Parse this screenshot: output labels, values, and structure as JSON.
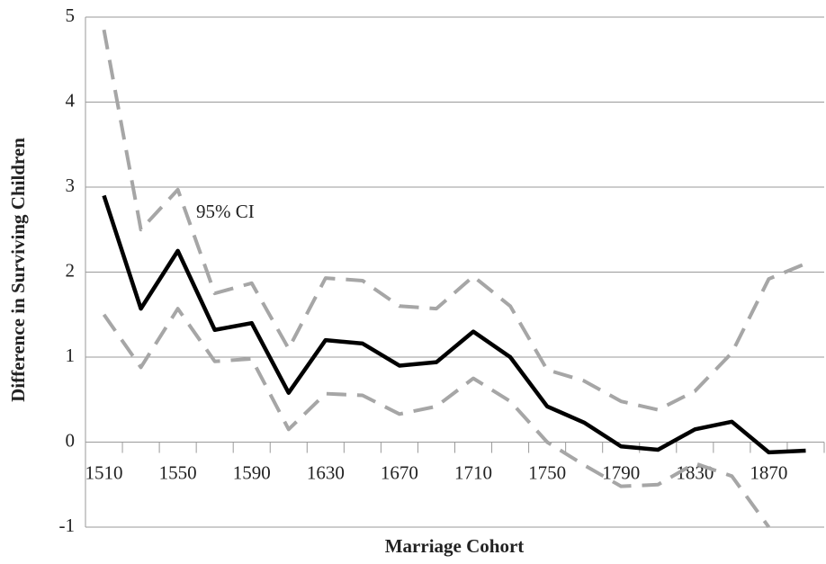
{
  "chart_data": {
    "type": "line",
    "xlabel": "Marriage Cohort",
    "ylabel": "Difference in Surviving Children",
    "annotation": "95% CI",
    "categories": [
      "1510",
      null,
      "1550",
      null,
      "1590",
      null,
      "1630",
      null,
      "1670",
      null,
      "1710",
      null,
      "1750",
      null,
      "1790",
      null,
      "1830",
      null,
      "1870",
      null
    ],
    "series": [
      {
        "color": "#000000",
        "dash": false,
        "values": [
          2.9,
          1.57,
          2.25,
          1.32,
          1.4,
          0.58,
          1.2,
          1.16,
          0.9,
          0.94,
          1.3,
          1.0,
          0.42,
          0.23,
          -0.05,
          -0.09,
          0.15,
          0.24,
          -0.12,
          -0.1
        ]
      },
      {
        "color": "#a6a6a6",
        "dash": true,
        "values": [
          4.85,
          2.5,
          2.97,
          1.75,
          1.87,
          1.1,
          1.93,
          1.9,
          1.6,
          1.57,
          1.95,
          1.6,
          0.85,
          0.72,
          0.48,
          0.38,
          0.6,
          1.05,
          1.92,
          2.1
        ]
      },
      {
        "color": "#a6a6a6",
        "dash": true,
        "values": [
          1.5,
          0.88,
          1.57,
          0.95,
          0.98,
          0.15,
          0.57,
          0.55,
          0.33,
          0.42,
          0.75,
          0.48,
          0.0,
          -0.27,
          -0.52,
          -0.5,
          -0.25,
          -0.4,
          -1.0,
          null
        ]
      }
    ],
    "ylim": [
      -1,
      5
    ],
    "yticks": [
      -1,
      0,
      1,
      2,
      3,
      4,
      5
    ],
    "grid": true
  }
}
